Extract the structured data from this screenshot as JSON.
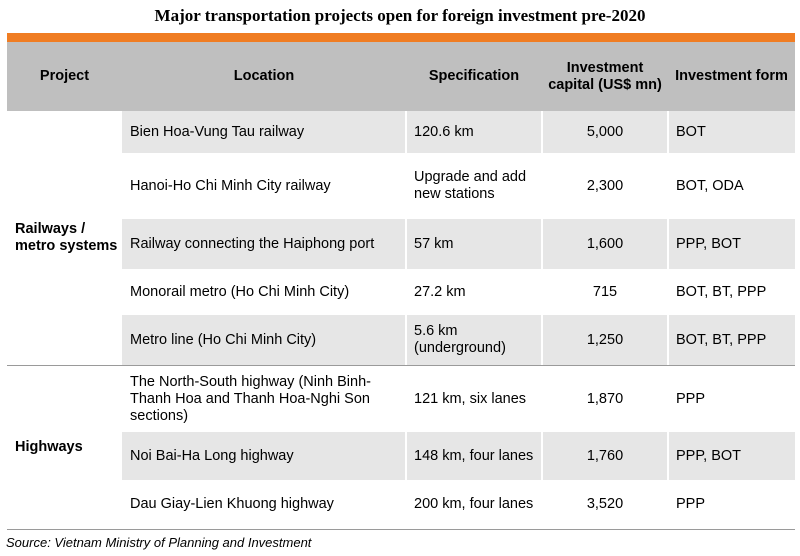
{
  "title": "Major transportation projects open for foreign investment pre-2020",
  "colors": {
    "accent": "#f07d23",
    "header_bg": "#bfbfbf",
    "row_alt_bg": "#e6e6e6"
  },
  "headers": {
    "project": "Project",
    "location": "Location",
    "specification": "Specification",
    "capital": "Investment capital (US$ mn)",
    "form": "Investment form"
  },
  "categories": [
    {
      "label": "Railways / metro systems"
    },
    {
      "label": "Highways"
    }
  ],
  "rows": [
    {
      "location": "Bien Hoa-Vung Tau railway",
      "spec": "120.6 km",
      "capital": "5,000",
      "form": "BOT"
    },
    {
      "location": "Hanoi-Ho Chi Minh City railway",
      "spec": "Upgrade and add new stations",
      "capital": "2,300",
      "form": "BOT, ODA"
    },
    {
      "location": "Railway connecting the Haiphong port",
      "spec": "57 km",
      "capital": "1,600",
      "form": "PPP, BOT"
    },
    {
      "location": "Monorail metro (Ho Chi Minh City)",
      "spec": "27.2 km",
      "capital": "715",
      "form": "BOT, BT, PPP"
    },
    {
      "location": "Metro line (Ho Chi Minh City)",
      "spec": "5.6 km (underground)",
      "capital": "1,250",
      "form": "BOT, BT, PPP"
    },
    {
      "location": "The North-South highway (Ninh Binh-Thanh Hoa and Thanh Hoa-Nghi Son sections)",
      "spec": "121 km, six lanes",
      "capital": "1,870",
      "form": "PPP"
    },
    {
      "location": "Noi Bai-Ha Long highway",
      "spec": "148 km, four lanes",
      "capital": "1,760",
      "form": "PPP, BOT"
    },
    {
      "location": "Dau Giay-Lien Khuong  highway",
      "spec": "200 km, four lanes",
      "capital": "3,520",
      "form": "PPP"
    }
  ],
  "source": "Source: Vietnam Ministry of Planning and Investment"
}
